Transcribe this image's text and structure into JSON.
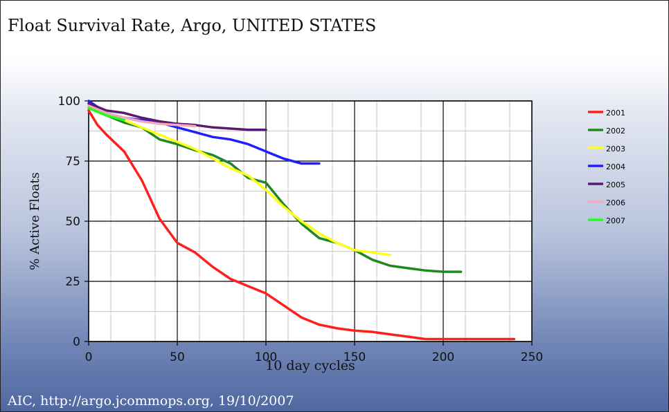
{
  "chart_data": {
    "type": "line",
    "title": "Float Survival Rate, Argo, UNITED STATES",
    "xlabel": "10 day cycles",
    "ylabel": "% Active Floats",
    "xlim": [
      0,
      250
    ],
    "ylim": [
      0,
      100
    ],
    "xticks": [
      0,
      50,
      100,
      150,
      200,
      250
    ],
    "yticks": [
      0,
      25,
      50,
      75,
      100
    ],
    "grid": true,
    "legend": "right",
    "series": [
      {
        "name": "2001",
        "color": "#ff1e1e",
        "x": [
          0,
          5,
          10,
          20,
          30,
          40,
          50,
          60,
          70,
          80,
          90,
          100,
          110,
          120,
          130,
          140,
          150,
          160,
          170,
          180,
          190,
          200,
          210,
          220,
          230,
          240
        ],
        "y": [
          96,
          90,
          86,
          79,
          67,
          51,
          41,
          37,
          31,
          26,
          23,
          20,
          15,
          10,
          7,
          5.5,
          4.5,
          4,
          3,
          2,
          1,
          1,
          1,
          1,
          1,
          1
        ]
      },
      {
        "name": "2002",
        "color": "#1e8a1e",
        "x": [
          0,
          10,
          20,
          30,
          40,
          50,
          60,
          70,
          80,
          90,
          100,
          110,
          120,
          130,
          140,
          150,
          160,
          170,
          180,
          190,
          200,
          210
        ],
        "y": [
          97,
          94,
          91,
          89,
          84,
          82,
          79.5,
          77.5,
          74,
          68,
          66,
          57,
          49,
          43,
          41,
          38,
          34,
          31.5,
          30.5,
          29.5,
          29,
          29
        ]
      },
      {
        "name": "2003",
        "color": "#ffff1e",
        "x": [
          0,
          10,
          20,
          30,
          40,
          50,
          60,
          70,
          80,
          90,
          100,
          110,
          120,
          130,
          140,
          150,
          160,
          170
        ],
        "y": [
          97,
          95,
          92,
          89,
          86,
          83,
          80,
          76,
          72,
          69,
          63,
          56,
          50,
          45,
          41,
          38,
          37,
          36
        ]
      },
      {
        "name": "2004",
        "color": "#1e1eff",
        "x": [
          0,
          10,
          20,
          30,
          40,
          50,
          60,
          70,
          80,
          90,
          100,
          110,
          120,
          130
        ],
        "y": [
          100,
          95,
          93,
          92,
          91,
          89,
          87,
          85,
          84,
          82,
          79,
          76,
          74,
          74
        ]
      },
      {
        "name": "2005",
        "color": "#5a1a6e",
        "x": [
          0,
          10,
          20,
          30,
          40,
          50,
          60,
          70,
          80,
          90,
          100
        ],
        "y": [
          99,
          96,
          95,
          93,
          91.5,
          90.5,
          90,
          89,
          88.5,
          88,
          88
        ]
      },
      {
        "name": "2006",
        "color": "#f4a9b8",
        "x": [
          0,
          10,
          20,
          30,
          40,
          50,
          60
        ],
        "y": [
          98,
          95,
          93,
          91.5,
          90.5,
          90,
          89.5
        ]
      },
      {
        "name": "2007",
        "color": "#1eff1e",
        "x": [
          0,
          10,
          20
        ],
        "y": [
          97,
          94,
          92
        ]
      }
    ]
  },
  "footer": {
    "credit": "AIC, http://argo.jcommops.org, 19/10/2007"
  }
}
